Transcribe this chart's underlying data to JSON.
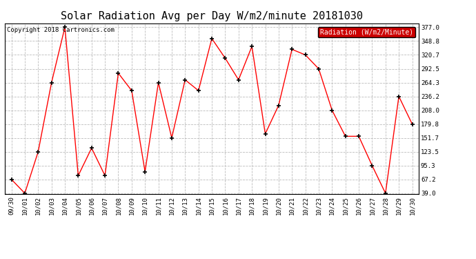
{
  "title": "Solar Radiation Avg per Day W/m2/minute 20181030",
  "copyright_text": "Copyright 2018 Cartronics.com",
  "legend_label": "Radiation (W/m2/Minute)",
  "dates": [
    "09/30",
    "10/01",
    "10/02",
    "10/03",
    "10/04",
    "10/05",
    "10/06",
    "10/07",
    "10/08",
    "10/09",
    "10/10",
    "10/11",
    "10/12",
    "10/13",
    "10/14",
    "10/15",
    "10/16",
    "10/17",
    "10/18",
    "10/19",
    "10/20",
    "10/21",
    "10/22",
    "10/23",
    "10/24",
    "10/25",
    "10/26",
    "10/27",
    "10/28",
    "10/29",
    "10/30"
  ],
  "values": [
    67.2,
    39.0,
    123.5,
    264.3,
    377.0,
    75.0,
    131.0,
    75.0,
    283.5,
    248.0,
    83.0,
    264.3,
    151.7,
    270.0,
    248.0,
    354.0,
    314.0,
    270.0,
    338.0,
    160.0,
    218.0,
    332.0,
    320.7,
    292.5,
    208.0,
    155.0,
    155.0,
    95.3,
    39.0,
    236.2,
    179.8
  ],
  "line_color": "red",
  "marker": "+",
  "marker_size": 5,
  "marker_color": "black",
  "bg_color": "#ffffff",
  "grid_color": "#bbbbbb",
  "yticks": [
    39.0,
    67.2,
    95.3,
    123.5,
    151.7,
    179.8,
    208.0,
    236.2,
    264.3,
    292.5,
    320.7,
    348.8,
    377.0
  ],
  "ymin": 39.0,
  "ymax": 377.0,
  "title_fontsize": 11,
  "copyright_fontsize": 6.5,
  "tick_fontsize": 6.5,
  "legend_bg": "#cc0000",
  "legend_text_color": "#ffffff",
  "legend_fontsize": 7
}
